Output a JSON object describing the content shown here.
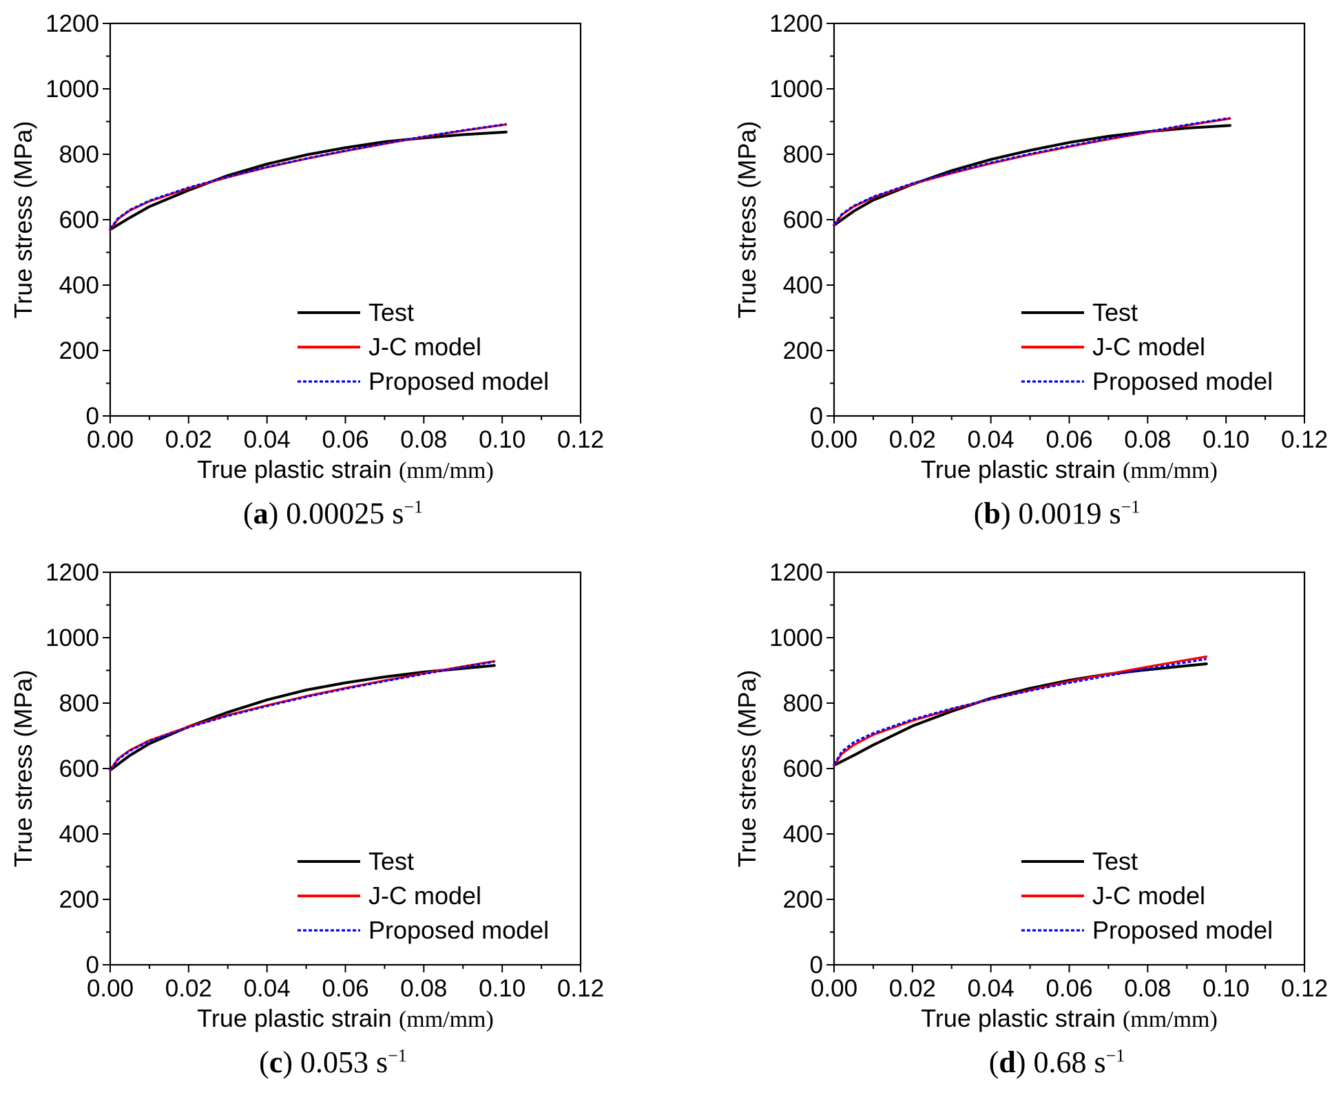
{
  "chart_data": [
    {
      "type": "line",
      "panel_label": "a",
      "caption_rate": "0.00025",
      "caption_unit": "s",
      "caption_exp": "−1",
      "xlabel": "True plastic strain",
      "xunit": "(mm/mm)",
      "ylabel": "True stress (MPa)",
      "xlim": [
        0,
        0.12
      ],
      "ylim": [
        0,
        1200
      ],
      "xticks": [
        "0.00",
        "0.02",
        "0.04",
        "0.06",
        "0.08",
        "0.10",
        "0.12"
      ],
      "yticks": [
        "0",
        "200",
        "400",
        "600",
        "800",
        "1000",
        "1200"
      ],
      "legend": [
        "Test",
        "J-C model",
        "Proposed model"
      ],
      "legend_position": "bottom-right",
      "series": [
        {
          "name": "Test",
          "color": "#000000",
          "style": "solid",
          "x": [
            0,
            0.005,
            0.01,
            0.02,
            0.03,
            0.04,
            0.05,
            0.06,
            0.07,
            0.08,
            0.09,
            0.101
          ],
          "y": [
            570,
            606,
            640,
            690,
            735,
            770,
            798,
            820,
            838,
            850,
            860,
            868
          ]
        },
        {
          "name": "J-C model",
          "color": "#ff0000",
          "style": "solid",
          "x": [
            0,
            0.002,
            0.005,
            0.01,
            0.02,
            0.03,
            0.04,
            0.05,
            0.06,
            0.07,
            0.08,
            0.09,
            0.101
          ],
          "y": [
            570,
            602,
            628,
            656,
            696,
            730,
            760,
            786,
            810,
            832,
            853,
            872,
            891
          ]
        },
        {
          "name": "Proposed model",
          "color": "#0000ff",
          "style": "dotted",
          "x": [
            0,
            0.002,
            0.005,
            0.01,
            0.02,
            0.03,
            0.04,
            0.05,
            0.06,
            0.07,
            0.08,
            0.09,
            0.101
          ],
          "y": [
            572,
            604,
            630,
            658,
            698,
            731,
            761,
            787,
            811,
            833,
            854,
            873,
            892
          ]
        }
      ]
    },
    {
      "type": "line",
      "panel_label": "b",
      "caption_rate": "0.0019",
      "caption_unit": "s",
      "caption_exp": "−1",
      "xlabel": "True plastic strain",
      "xunit": "(mm/mm)",
      "ylabel": "True stress (MPa)",
      "xlim": [
        0,
        0.12
      ],
      "ylim": [
        0,
        1200
      ],
      "xticks": [
        "0.00",
        "0.02",
        "0.04",
        "0.06",
        "0.08",
        "0.10",
        "0.12"
      ],
      "yticks": [
        "0",
        "200",
        "400",
        "600",
        "800",
        "1000",
        "1200"
      ],
      "legend": [
        "Test",
        "J-C model",
        "Proposed model"
      ],
      "legend_position": "bottom-right",
      "series": [
        {
          "name": "Test",
          "color": "#000000",
          "style": "solid",
          "x": [
            0,
            0.005,
            0.01,
            0.02,
            0.03,
            0.04,
            0.05,
            0.06,
            0.07,
            0.08,
            0.09,
            0.101
          ],
          "y": [
            583,
            626,
            660,
            708,
            750,
            784,
            812,
            836,
            855,
            869,
            880,
            888
          ]
        },
        {
          "name": "J-C model",
          "color": "#ff0000",
          "style": "solid",
          "x": [
            0,
            0.002,
            0.005,
            0.01,
            0.02,
            0.03,
            0.04,
            0.05,
            0.06,
            0.07,
            0.08,
            0.09,
            0.101
          ],
          "y": [
            583,
            615,
            640,
            668,
            709,
            742,
            772,
            799,
            823,
            846,
            867,
            888,
            909
          ]
        },
        {
          "name": "Proposed model",
          "color": "#0000ff",
          "style": "dotted",
          "x": [
            0,
            0.002,
            0.005,
            0.01,
            0.02,
            0.03,
            0.04,
            0.05,
            0.06,
            0.07,
            0.08,
            0.09,
            0.101
          ],
          "y": [
            585,
            617,
            642,
            670,
            711,
            744,
            774,
            801,
            825,
            848,
            869,
            890,
            911
          ]
        }
      ]
    },
    {
      "type": "line",
      "panel_label": "c",
      "caption_rate": "0.053",
      "caption_unit": "s",
      "caption_exp": "−1",
      "xlabel": "True plastic strain",
      "xunit": "(mm/mm)",
      "ylabel": "True stress (MPa)",
      "xlim": [
        0,
        0.12
      ],
      "ylim": [
        0,
        1200
      ],
      "xticks": [
        "0.00",
        "0.02",
        "0.04",
        "0.06",
        "0.08",
        "0.10",
        "0.12"
      ],
      "yticks": [
        "0",
        "200",
        "400",
        "600",
        "800",
        "1000",
        "1200"
      ],
      "legend": [
        "Test",
        "J-C model",
        "Proposed model"
      ],
      "legend_position": "bottom-right",
      "series": [
        {
          "name": "Test",
          "color": "#000000",
          "style": "solid",
          "x": [
            0,
            0.005,
            0.01,
            0.02,
            0.03,
            0.04,
            0.05,
            0.06,
            0.07,
            0.08,
            0.09,
            0.098
          ],
          "y": [
            595,
            640,
            676,
            728,
            772,
            810,
            840,
            862,
            880,
            895,
            906,
            915
          ]
        },
        {
          "name": "J-C model",
          "color": "#ff0000",
          "style": "solid",
          "x": [
            0,
            0.002,
            0.005,
            0.01,
            0.02,
            0.03,
            0.04,
            0.05,
            0.06,
            0.07,
            0.08,
            0.09,
            0.098
          ],
          "y": [
            595,
            630,
            656,
            686,
            728,
            763,
            793,
            821,
            846,
            869,
            891,
            912,
            928
          ]
        },
        {
          "name": "Proposed model",
          "color": "#0000ff",
          "style": "dotted",
          "x": [
            0,
            0.002,
            0.005,
            0.01,
            0.02,
            0.03,
            0.04,
            0.05,
            0.06,
            0.07,
            0.08,
            0.09,
            0.098
          ],
          "y": [
            597,
            628,
            654,
            684,
            726,
            761,
            791,
            819,
            844,
            867,
            889,
            910,
            927
          ]
        }
      ]
    },
    {
      "type": "line",
      "panel_label": "d",
      "caption_rate": "0.68",
      "caption_unit": "s",
      "caption_exp": "−1",
      "xlabel": "True plastic strain",
      "xunit": "(mm/mm)",
      "ylabel": "True stress (MPa)",
      "xlim": [
        0,
        0.12
      ],
      "ylim": [
        0,
        1200
      ],
      "xticks": [
        "0.00",
        "0.02",
        "0.04",
        "0.06",
        "0.08",
        "0.10",
        "0.12"
      ],
      "yticks": [
        "0",
        "200",
        "400",
        "600",
        "800",
        "1000",
        "1200"
      ],
      "legend": [
        "Test",
        "J-C model",
        "Proposed model"
      ],
      "legend_position": "bottom-right",
      "series": [
        {
          "name": "Test",
          "color": "#000000",
          "style": "solid",
          "x": [
            0,
            0.005,
            0.01,
            0.02,
            0.03,
            0.04,
            0.05,
            0.06,
            0.07,
            0.08,
            0.09,
            0.095
          ],
          "y": [
            610,
            640,
            672,
            730,
            775,
            815,
            845,
            870,
            889,
            902,
            914,
            920
          ]
        },
        {
          "name": "J-C model",
          "color": "#ff0000",
          "style": "solid",
          "x": [
            0,
            0.002,
            0.005,
            0.01,
            0.02,
            0.03,
            0.04,
            0.05,
            0.06,
            0.07,
            0.08,
            0.09,
            0.095
          ],
          "y": [
            610,
            645,
            672,
            703,
            746,
            781,
            812,
            840,
            866,
            889,
            911,
            932,
            942
          ]
        },
        {
          "name": "Proposed model",
          "color": "#0000ff",
          "style": "dotted",
          "x": [
            0,
            0.002,
            0.005,
            0.01,
            0.02,
            0.03,
            0.04,
            0.05,
            0.06,
            0.07,
            0.08,
            0.09,
            0.095
          ],
          "y": [
            612,
            652,
            680,
            708,
            750,
            783,
            812,
            838,
            862,
            884,
            905,
            925,
            935
          ]
        }
      ]
    }
  ]
}
